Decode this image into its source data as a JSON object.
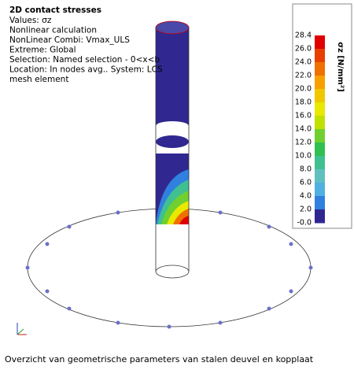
{
  "info": {
    "title": "2D contact stresses",
    "lines": [
      "Values: σz",
      "Nonlinear calculation",
      "NonLinear Combi: Vmax_ULS",
      "Extreme: Global",
      "Selection: Named selection - 0<x<b",
      "Location: In nodes avg.. System: LCS",
      "mesh element"
    ]
  },
  "legend": {
    "unit": "σz [N/mm²]",
    "labels": [
      "28.4",
      "26.0",
      "24.0",
      "22.0",
      "20.0",
      "18.0",
      "16.0",
      "14.0",
      "12.0",
      "10.0",
      "8.0",
      "6.0",
      "4.0",
      "2.0",
      "-0.0"
    ],
    "colors": [
      "#e00000",
      "#e84000",
      "#f07000",
      "#f8a000",
      "#f0c800",
      "#e8e800",
      "#c0e000",
      "#70d030",
      "#30c050",
      "#40c090",
      "#60c0c0",
      "#50b0e0",
      "#3080e0",
      "#302890"
    ]
  },
  "caption": "Overzicht van geometrische parameters van stalen deuvel en kopplaat"
}
